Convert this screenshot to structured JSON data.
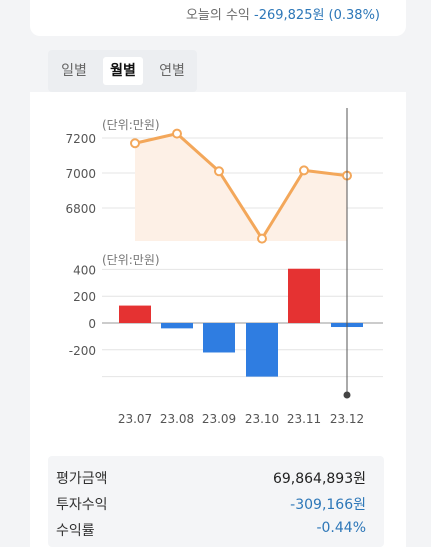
{
  "header": {
    "today_label": "오늘의 수익",
    "today_value": "-269,825원 (0.38%)"
  },
  "tabs": [
    {
      "label": "일별",
      "active": false
    },
    {
      "label": "월별",
      "active": true
    },
    {
      "label": "연별",
      "active": false
    }
  ],
  "chart_data": [
    {
      "type": "line",
      "unit_label": "(단위:만원)",
      "categories": [
        "23.07",
        "23.08",
        "23.09",
        "23.10",
        "23.11",
        "23.12"
      ],
      "values": [
        7170,
        7225,
        7010,
        6625,
        7015,
        6985
      ],
      "yticks": [
        7200,
        7000,
        6800
      ],
      "ylim": [
        6600,
        7300
      ],
      "color": "#f3a75a",
      "fill": "#fdf0e6"
    },
    {
      "type": "bar",
      "unit_label": "(단위:만원)",
      "categories": [
        "23.07",
        "23.08",
        "23.09",
        "23.10",
        "23.11",
        "23.12"
      ],
      "values": [
        130,
        -40,
        -220,
        -400,
        405,
        -30
      ],
      "yticks": [
        400,
        200,
        0,
        -200
      ],
      "ylim": [
        -400,
        400
      ],
      "positive_color": "#e53232",
      "negative_color": "#2f7de1"
    }
  ],
  "summary": [
    {
      "label": "평가금액",
      "value": "69,864,893원",
      "color": "#222222"
    },
    {
      "label": "투자수익",
      "value": "-309,166원",
      "color": "#2d77b8"
    },
    {
      "label": "수익률",
      "value": "-0.44%",
      "color": "#2d77b8"
    }
  ]
}
